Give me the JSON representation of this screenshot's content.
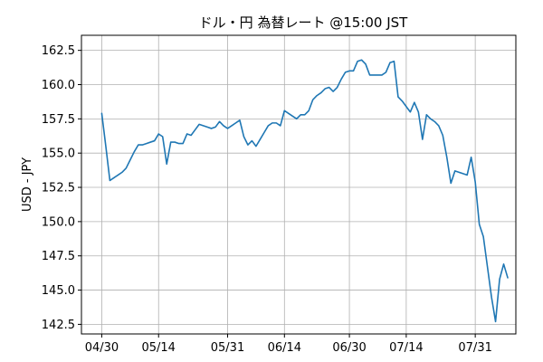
{
  "chart_data": {
    "type": "line",
    "title": "ドル・円 為替レート @15:00 JST",
    "xlabel": "",
    "ylabel": "USD - JPY",
    "grid": true,
    "legend": "none",
    "ylim": [
      141.8,
      163.6
    ],
    "xlim": [
      "2024-04-25",
      "2024-08-10"
    ],
    "y_ticks": [
      142.5,
      145.0,
      147.5,
      150.0,
      152.5,
      155.0,
      157.5,
      160.0,
      162.5
    ],
    "y_tick_labels": [
      "142.5",
      "145.0",
      "147.5",
      "150.0",
      "152.5",
      "155.0",
      "157.5",
      "160.0",
      "162.5"
    ],
    "x_ticks": [
      "2024-04-30",
      "2024-05-14",
      "2024-05-31",
      "2024-06-14",
      "2024-06-30",
      "2024-07-14",
      "2024-07-31"
    ],
    "x_tick_labels": [
      "04/30",
      "05/14",
      "05/31",
      "06/14",
      "06/30",
      "07/14",
      "07/31"
    ],
    "series": [
      {
        "color": "#1f77b4",
        "points": [
          [
            "2024-04-30",
            157.9
          ],
          [
            "2024-05-01",
            155.5
          ],
          [
            "2024-05-02",
            153.0
          ],
          [
            "2024-05-03",
            153.2
          ],
          [
            "2024-05-04",
            153.4
          ],
          [
            "2024-05-05",
            153.6
          ],
          [
            "2024-05-06",
            153.9
          ],
          [
            "2024-05-07",
            154.5
          ],
          [
            "2024-05-08",
            155.1
          ],
          [
            "2024-05-09",
            155.6
          ],
          [
            "2024-05-10",
            155.6
          ],
          [
            "2024-05-11",
            155.7
          ],
          [
            "2024-05-12",
            155.8
          ],
          [
            "2024-05-13",
            155.9
          ],
          [
            "2024-05-14",
            156.4
          ],
          [
            "2024-05-15",
            156.2
          ],
          [
            "2024-05-16",
            154.2
          ],
          [
            "2024-05-17",
            155.8
          ],
          [
            "2024-05-18",
            155.8
          ],
          [
            "2024-05-19",
            155.7
          ],
          [
            "2024-05-20",
            155.7
          ],
          [
            "2024-05-21",
            156.4
          ],
          [
            "2024-05-22",
            156.3
          ],
          [
            "2024-05-23",
            156.7
          ],
          [
            "2024-05-24",
            157.1
          ],
          [
            "2024-05-25",
            157.0
          ],
          [
            "2024-05-26",
            156.9
          ],
          [
            "2024-05-27",
            156.8
          ],
          [
            "2024-05-28",
            156.9
          ],
          [
            "2024-05-29",
            157.3
          ],
          [
            "2024-05-30",
            157.0
          ],
          [
            "2024-05-31",
            156.8
          ],
          [
            "2024-06-01",
            157.0
          ],
          [
            "2024-06-02",
            157.2
          ],
          [
            "2024-06-03",
            157.4
          ],
          [
            "2024-06-04",
            156.2
          ],
          [
            "2024-06-05",
            155.6
          ],
          [
            "2024-06-06",
            155.9
          ],
          [
            "2024-06-07",
            155.5
          ],
          [
            "2024-06-08",
            156.0
          ],
          [
            "2024-06-09",
            156.5
          ],
          [
            "2024-06-10",
            157.0
          ],
          [
            "2024-06-11",
            157.2
          ],
          [
            "2024-06-12",
            157.2
          ],
          [
            "2024-06-13",
            157.0
          ],
          [
            "2024-06-14",
            158.1
          ],
          [
            "2024-06-15",
            157.9
          ],
          [
            "2024-06-16",
            157.7
          ],
          [
            "2024-06-17",
            157.5
          ],
          [
            "2024-06-18",
            157.8
          ],
          [
            "2024-06-19",
            157.8
          ],
          [
            "2024-06-20",
            158.1
          ],
          [
            "2024-06-21",
            158.9
          ],
          [
            "2024-06-22",
            159.2
          ],
          [
            "2024-06-23",
            159.4
          ],
          [
            "2024-06-24",
            159.7
          ],
          [
            "2024-06-25",
            159.8
          ],
          [
            "2024-06-26",
            159.5
          ],
          [
            "2024-06-27",
            159.8
          ],
          [
            "2024-06-28",
            160.4
          ],
          [
            "2024-06-29",
            160.9
          ],
          [
            "2024-06-30",
            161.0
          ],
          [
            "2024-07-01",
            161.0
          ],
          [
            "2024-07-02",
            161.7
          ],
          [
            "2024-07-03",
            161.8
          ],
          [
            "2024-07-04",
            161.5
          ],
          [
            "2024-07-05",
            160.7
          ],
          [
            "2024-07-06",
            160.7
          ],
          [
            "2024-07-07",
            160.7
          ],
          [
            "2024-07-08",
            160.7
          ],
          [
            "2024-07-09",
            160.9
          ],
          [
            "2024-07-10",
            161.6
          ],
          [
            "2024-07-11",
            161.7
          ],
          [
            "2024-07-12",
            159.1
          ],
          [
            "2024-07-13",
            158.8
          ],
          [
            "2024-07-14",
            158.4
          ],
          [
            "2024-07-15",
            158.0
          ],
          [
            "2024-07-16",
            158.7
          ],
          [
            "2024-07-17",
            158.0
          ],
          [
            "2024-07-18",
            156.0
          ],
          [
            "2024-07-19",
            157.8
          ],
          [
            "2024-07-20",
            157.5
          ],
          [
            "2024-07-21",
            157.3
          ],
          [
            "2024-07-22",
            157.0
          ],
          [
            "2024-07-23",
            156.3
          ],
          [
            "2024-07-24",
            154.7
          ],
          [
            "2024-07-25",
            152.8
          ],
          [
            "2024-07-26",
            153.7
          ],
          [
            "2024-07-27",
            153.6
          ],
          [
            "2024-07-28",
            153.5
          ],
          [
            "2024-07-29",
            153.4
          ],
          [
            "2024-07-30",
            154.7
          ],
          [
            "2024-07-31",
            152.9
          ],
          [
            "2024-08-01",
            149.8
          ],
          [
            "2024-08-02",
            148.9
          ],
          [
            "2024-08-03",
            146.7
          ],
          [
            "2024-08-04",
            144.5
          ],
          [
            "2024-08-05",
            142.7
          ],
          [
            "2024-08-06",
            145.8
          ],
          [
            "2024-08-07",
            146.9
          ],
          [
            "2024-08-08",
            145.9
          ]
        ]
      }
    ]
  }
}
